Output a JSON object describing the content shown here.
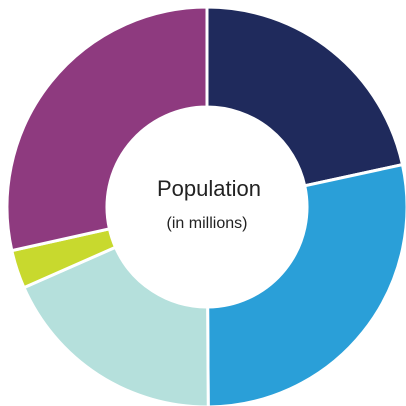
{
  "chart_data": {
    "type": "donut",
    "title": "Population",
    "subtitle": "(in millions)",
    "values": [
      21.6,
      28.3,
      18.5,
      3.1,
      28.5
    ],
    "colors": [
      "#1f2a5c",
      "#2a9fd8",
      "#b5e0dc",
      "#c8d92e",
      "#8e3a7f"
    ]
  }
}
